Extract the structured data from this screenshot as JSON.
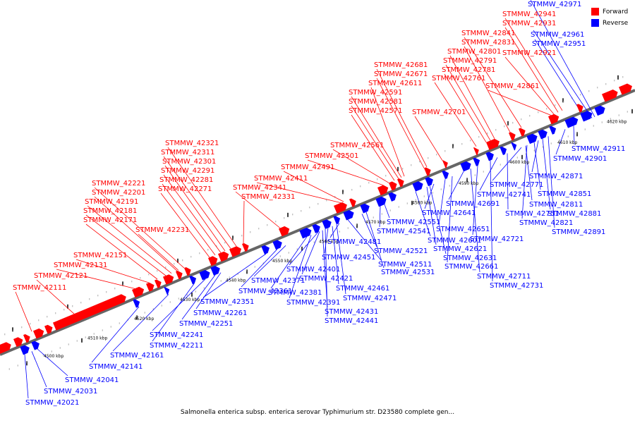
{
  "caption": "Salmonella enterica subsp. enterica serovar Typhimurium str. D23580 complete gen...",
  "legend": [
    {
      "label": "Forward",
      "color": "#ff0000"
    },
    {
      "label": "Reverse",
      "color": "#0000ff"
    }
  ],
  "colors": {
    "forward": "#ff0000",
    "reverse": "#0000ff",
    "backbone": "#555555"
  },
  "ticks": [
    "4500 kbp",
    "4510 kbp",
    "4520 kbp",
    "4530 kbp",
    "4540 kbp",
    "4550 kbp",
    "4560 kbp",
    "4570 kbp",
    "4580 kbp",
    "4590 kbp",
    "4600 kbp",
    "4610 kbp",
    "4620 kbp"
  ],
  "forward_labels": [
    "STMMW_42111",
    "STMMW_42121",
    "STMMW_42131",
    "STMMW_42151",
    "STMMW_42171",
    "STMMW_42181",
    "STMMW_42191",
    "STMMW_42201",
    "STMMW_42221",
    "STMMW_42231",
    "STMMW_42271",
    "STMMW_42281",
    "STMMW_42291",
    "STMMW_42301",
    "STMMW_42311",
    "STMMW_42321",
    "STMMW_42331",
    "STMMW_42341",
    "STMMW_42411",
    "STMMW_42491",
    "STMMW_42501",
    "STMMW_42561",
    "STMMW_42571",
    "STMMW_42581",
    "STMMW_42591",
    "STMMW_42611",
    "STMMW_42671",
    "STMMW_42681",
    "STMMW_42701",
    "STMMW_42761",
    "STMMW_42781",
    "STMMW_42791",
    "STMMW_42801",
    "STMMW_42831",
    "STMMW_42841",
    "STMMW_42861",
    "STMMW_42921",
    "STMMW_42931",
    "STMMW_42941"
  ],
  "reverse_labels": [
    "STMMW_42021",
    "STMMW_42031",
    "STMMW_42041",
    "STMMW_42141",
    "STMMW_42161",
    "STMMW_42211",
    "STMMW_42241",
    "STMMW_42251",
    "STMMW_42261",
    "STMMW_42351",
    "STMMW_42361",
    "STMMW_42371",
    "STMMW_42381",
    "STMMW_42391",
    "STMMW_42401",
    "STMMW_42421",
    "STMMW_42431",
    "STMMW_42441",
    "STMMW_42451",
    "STMMW_42461",
    "STMMW_42471",
    "STMMW_42481",
    "STMMW_42511",
    "STMMW_42521",
    "STMMW_42531",
    "STMMW_42541",
    "STMMW_42551",
    "STMMW_42601",
    "STMMW_42621",
    "STMMW_42631",
    "STMMW_42641",
    "STMMW_42651",
    "STMMW_42661",
    "STMMW_42691",
    "STMMW_42711",
    "STMMW_42721",
    "STMMW_42731",
    "STMMW_42741",
    "STMMW_42751",
    "STMMW_42771",
    "STMMW_42811",
    "STMMW_42821",
    "STMMW_42851",
    "STMMW_42871",
    "STMMW_42881",
    "STMMW_42891",
    "STMMW_42901",
    "STMMW_42911",
    "STMMW_42951",
    "STMMW_42961",
    "STMMW_42971"
  ]
}
